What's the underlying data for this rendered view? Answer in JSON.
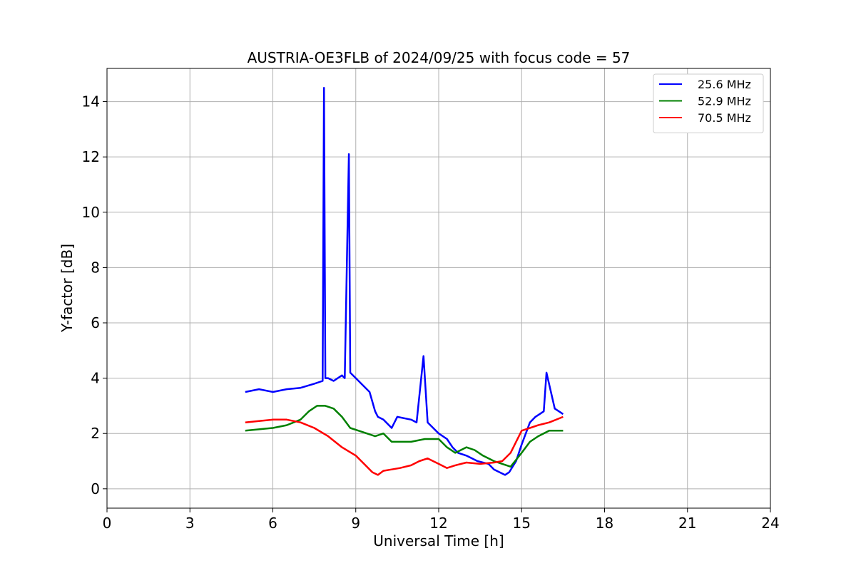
{
  "chart_data": {
    "type": "line",
    "title": "AUSTRIA-OE3FLB of 2024/09/25 with focus code = 57",
    "xlabel": "Universal Time [h]",
    "ylabel": "Y-factor [dB]",
    "xlim": [
      0,
      24
    ],
    "ylim": [
      -0.7,
      15.2
    ],
    "x_ticks": [
      "0",
      "3",
      "6",
      "9",
      "12",
      "15",
      "18",
      "21",
      "24"
    ],
    "y_ticks": [
      "0",
      "2",
      "4",
      "6",
      "8",
      "10",
      "12",
      "14"
    ],
    "grid": true,
    "legend_position": "top-right",
    "series": [
      {
        "name": "25.6 MHz",
        "color": "#0000ff",
        "x": [
          5.0,
          5.5,
          6.0,
          6.5,
          7.0,
          7.5,
          7.8,
          7.85,
          7.9,
          8.0,
          8.2,
          8.5,
          8.6,
          8.75,
          8.8,
          9.0,
          9.2,
          9.5,
          9.7,
          9.8,
          10.0,
          10.3,
          10.5,
          11.0,
          11.2,
          11.45,
          11.6,
          12.0,
          12.3,
          12.5,
          12.7,
          13.0,
          13.4,
          13.8,
          14.0,
          14.2,
          14.4,
          14.55,
          14.8,
          15.0,
          15.3,
          15.5,
          15.8,
          15.9,
          16.2,
          16.5
        ],
        "values": [
          3.5,
          3.6,
          3.5,
          3.6,
          3.65,
          3.8,
          3.9,
          14.5,
          4.0,
          4.0,
          3.9,
          4.1,
          4.0,
          12.1,
          4.2,
          4.0,
          3.8,
          3.5,
          2.8,
          2.6,
          2.5,
          2.2,
          2.6,
          2.5,
          2.4,
          4.8,
          2.4,
          2.0,
          1.8,
          1.5,
          1.3,
          1.2,
          1.0,
          0.9,
          0.7,
          0.6,
          0.5,
          0.6,
          1.0,
          1.6,
          2.4,
          2.6,
          2.8,
          4.2,
          2.9,
          2.7
        ]
      },
      {
        "name": "52.9 MHz",
        "color": "#008000",
        "x": [
          5.0,
          5.5,
          6.0,
          6.5,
          7.0,
          7.3,
          7.6,
          7.9,
          8.2,
          8.5,
          8.8,
          9.1,
          9.4,
          9.7,
          10.0,
          10.3,
          10.7,
          11.0,
          11.5,
          12.0,
          12.3,
          12.6,
          13.0,
          13.3,
          13.6,
          14.0,
          14.3,
          14.6,
          15.0,
          15.3,
          15.6,
          16.0,
          16.5
        ],
        "values": [
          2.1,
          2.15,
          2.2,
          2.3,
          2.5,
          2.8,
          3.0,
          3.0,
          2.9,
          2.6,
          2.2,
          2.1,
          2.0,
          1.9,
          2.0,
          1.7,
          1.7,
          1.7,
          1.8,
          1.8,
          1.5,
          1.3,
          1.5,
          1.4,
          1.2,
          1.0,
          0.9,
          0.8,
          1.3,
          1.7,
          1.9,
          2.1,
          2.1
        ]
      },
      {
        "name": "70.5 MHz",
        "color": "#ff0000",
        "x": [
          5.0,
          5.5,
          6.0,
          6.5,
          7.0,
          7.5,
          8.0,
          8.5,
          9.0,
          9.3,
          9.6,
          9.8,
          10.0,
          10.3,
          10.6,
          11.0,
          11.3,
          11.6,
          12.0,
          12.3,
          12.6,
          13.0,
          13.5,
          14.0,
          14.3,
          14.6,
          14.8,
          15.0,
          15.3,
          15.6,
          16.0,
          16.5
        ],
        "values": [
          2.4,
          2.45,
          2.5,
          2.5,
          2.4,
          2.2,
          1.9,
          1.5,
          1.2,
          0.9,
          0.6,
          0.5,
          0.65,
          0.7,
          0.75,
          0.85,
          1.0,
          1.1,
          0.9,
          0.75,
          0.85,
          0.95,
          0.9,
          0.95,
          1.0,
          1.3,
          1.7,
          2.1,
          2.2,
          2.3,
          2.4,
          2.6
        ]
      }
    ]
  }
}
